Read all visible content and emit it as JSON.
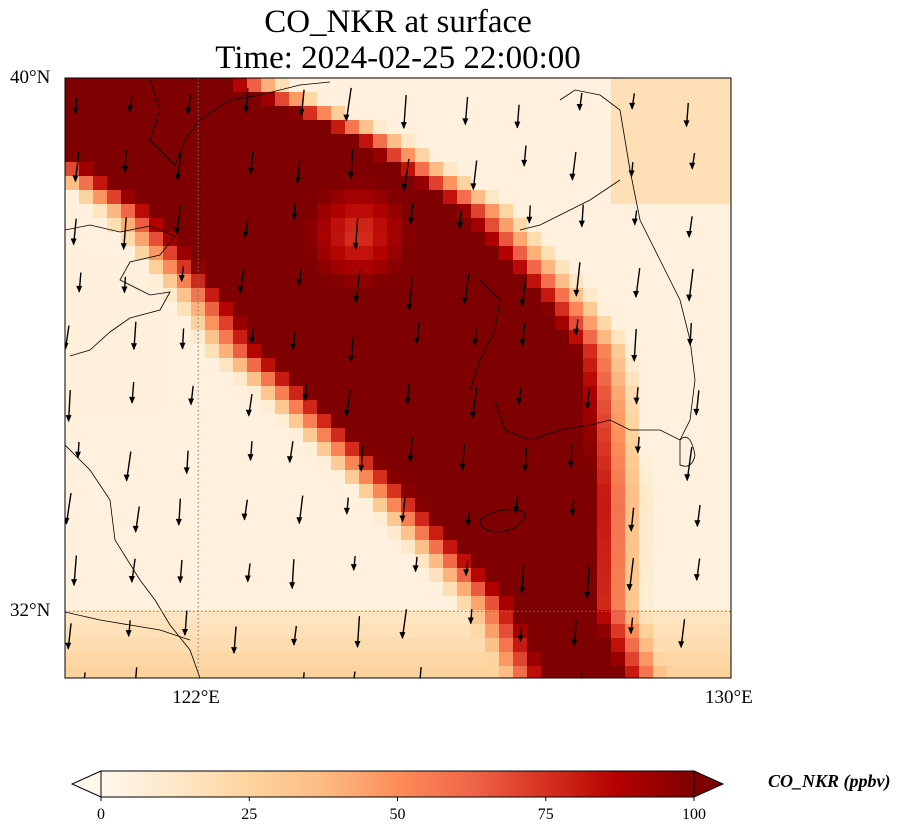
{
  "title": {
    "line1": "CO_NKR at surface",
    "line2": "Time: 2024-02-25 22:00:00"
  },
  "map": {
    "projection": "PlateCarree",
    "lon_range": [
      120,
      130
    ],
    "lat_range": [
      31,
      40
    ],
    "gridlines": {
      "lon": [
        122
      ],
      "lat": [
        32
      ],
      "style": "dotted"
    },
    "lon_ticks": [
      {
        "lon": 122,
        "label": "122°E"
      },
      {
        "lon": 130,
        "label": "130°E"
      }
    ],
    "lat_ticks": [
      {
        "lat": 40,
        "label": "40°N"
      },
      {
        "lat": 32,
        "label": "32°N"
      }
    ],
    "plume_description": "high-CO plume over Yellow Sea",
    "wind_direction": "northerly (pointing south)"
  },
  "colorbar": {
    "colormap": "OrRd",
    "min": 0,
    "max": 100,
    "extend": "both",
    "ticks": [
      {
        "value": 0,
        "label": "0"
      },
      {
        "value": 25,
        "label": "25"
      },
      {
        "value": 50,
        "label": "50"
      },
      {
        "value": 75,
        "label": "75"
      },
      {
        "value": 100,
        "label": "100"
      }
    ],
    "label": "CO_NKR (ppbv)",
    "colors": [
      "#fff7ec",
      "#fee8c8",
      "#fdd49e",
      "#fdbb84",
      "#fc8d59",
      "#ef6548",
      "#d7301f",
      "#b30000",
      "#7f0000"
    ]
  }
}
